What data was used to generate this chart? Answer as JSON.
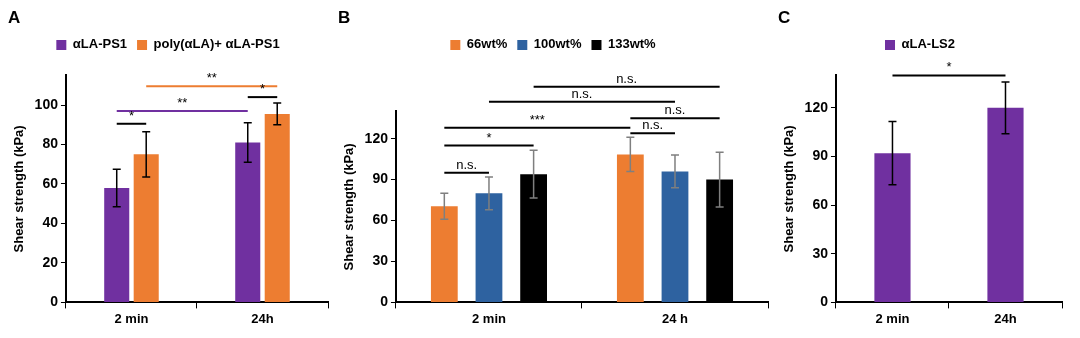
{
  "chart_data": [
    {
      "type": "bar",
      "title": "A",
      "ylabel": "Shear strength (kPa)",
      "categories": [
        "2 min",
        "24h"
      ],
      "ylim": [
        0,
        115
      ],
      "yticks": [
        0,
        20,
        40,
        60,
        80,
        100
      ],
      "grid": false,
      "legend": "top",
      "series": [
        {
          "name": "αLA-PS1",
          "color": "#7030a0",
          "values": [
            58,
            81
          ],
          "errors": [
            9.5,
            10
          ]
        },
        {
          "name": "poly(αLA)+ αLA-PS1",
          "color": "#ed7d31",
          "values": [
            75,
            95.5
          ],
          "errors": [
            11.5,
            5.5
          ]
        }
      ],
      "annotations": [
        "**",
        "*",
        "**",
        "*"
      ]
    },
    {
      "type": "bar",
      "title": "B",
      "ylabel": "Shear strength (kPa)",
      "categories": [
        "2 min",
        "24 h"
      ],
      "ylim": [
        0,
        140
      ],
      "yticks": [
        0,
        30,
        60,
        90,
        120
      ],
      "grid": false,
      "legend": "top",
      "series": [
        {
          "name": "66wt%",
          "color": "#ed7d31",
          "values": [
            70.5,
            108.5
          ],
          "errors": [
            9.5,
            12.5
          ]
        },
        {
          "name": "100wt%",
          "color": "#2e62a0",
          "values": [
            80,
            96
          ],
          "errors": [
            12,
            12
          ]
        },
        {
          "name": "133wt%",
          "color": "#000000",
          "values": [
            94,
            90
          ],
          "errors": [
            17.5,
            20
          ]
        }
      ],
      "annotations": [
        "n.s.",
        "n.s.",
        "n.s.",
        "***",
        "n.s.",
        "*",
        "n.s."
      ]
    },
    {
      "type": "bar",
      "title": "C",
      "ylabel": "Shear strength (kPa)",
      "categories": [
        "2 min",
        "24h"
      ],
      "ylim": [
        0,
        140
      ],
      "yticks": [
        0,
        30,
        60,
        90,
        120
      ],
      "grid": false,
      "legend": "top",
      "series": [
        {
          "name": "αLA-LS2",
          "color": "#7030a0",
          "values": [
            92,
            120
          ],
          "errors": [
            19.5,
            16
          ]
        }
      ],
      "annotations": [
        "*"
      ]
    }
  ]
}
